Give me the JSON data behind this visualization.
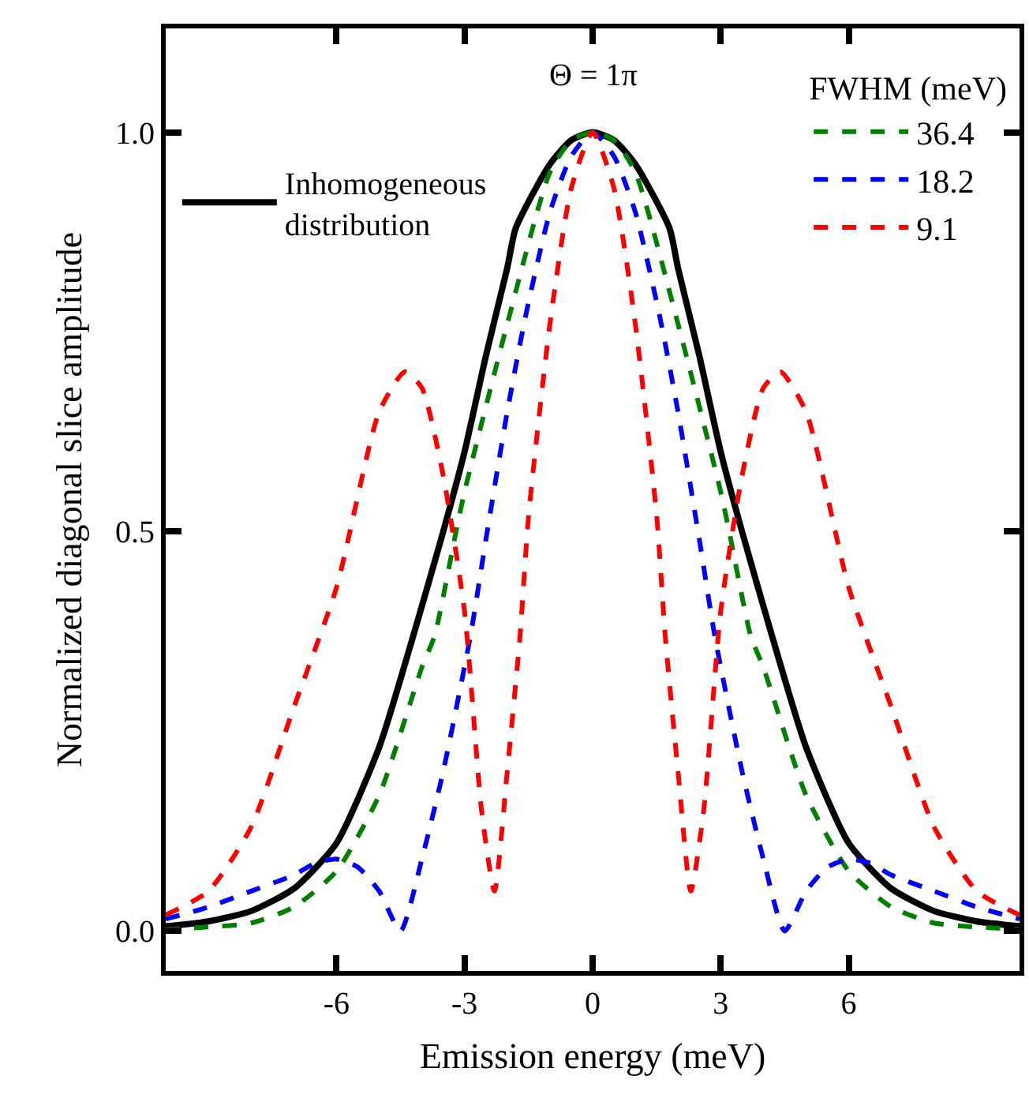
{
  "chart_data": {
    "type": "line",
    "xlabel": "Emission energy (meV)",
    "ylabel": "Normalized diagonal slice amplitude",
    "legend_title": "FWHM (meV)",
    "legend": "top right",
    "marker": "none",
    "xlim": [
      -10,
      10
    ],
    "xticks": [
      -6,
      -3,
      0,
      3,
      6
    ],
    "ylim": [
      -0.05,
      1.13
    ],
    "yticks": [
      {
        "value": 0,
        "label": "0.0"
      },
      {
        "value": 0.5,
        "label": "0.5"
      },
      {
        "value": 1,
        "label": "1.0"
      }
    ],
    "annotations": [
      "Θ = 1π"
    ],
    "series": [
      {
        "name": "Inhomogeneous distribution",
        "color": "#000000",
        "line_style": "solid",
        "x": [
          -10,
          -9,
          -8,
          -7,
          -6,
          -5,
          -4.2,
          -3.5,
          -3,
          -2.5,
          -2,
          -1.8,
          -1,
          -0.5,
          0,
          0.5,
          1,
          1.8,
          2,
          2.5,
          3,
          3.5,
          4.2,
          5,
          6,
          7,
          8,
          9,
          10
        ],
        "values": [
          0.006,
          0.012,
          0.025,
          0.053,
          0.11,
          0.23,
          0.37,
          0.5,
          0.6,
          0.72,
          0.83,
          0.88,
          0.96,
          0.99,
          1.0,
          0.99,
          0.96,
          0.88,
          0.83,
          0.72,
          0.6,
          0.5,
          0.37,
          0.23,
          0.11,
          0.053,
          0.025,
          0.012,
          0.006
        ]
      },
      {
        "name": "36.4",
        "color": "#008000",
        "line_style": "dashed",
        "x": [
          -10,
          -9,
          -8,
          -7,
          -6,
          -5,
          -4,
          -3.7,
          -3.2,
          -3,
          -2,
          -1,
          -0.5,
          0,
          0.5,
          1,
          2,
          3,
          3.2,
          3.7,
          4,
          5,
          6,
          7,
          8,
          9,
          10
        ],
        "values": [
          0.002,
          0.005,
          0.01,
          0.03,
          0.075,
          0.17,
          0.33,
          0.37,
          0.5,
          0.55,
          0.76,
          0.95,
          0.99,
          1.0,
          0.99,
          0.95,
          0.76,
          0.55,
          0.5,
          0.37,
          0.33,
          0.17,
          0.075,
          0.03,
          0.01,
          0.005,
          0.002
        ]
      },
      {
        "name": "18.2",
        "color": "#0000ff",
        "line_style": "dashed",
        "x": [
          -10,
          -9,
          -8,
          -7,
          -6.5,
          -6,
          -5.5,
          -5,
          -4.5,
          -4,
          -3.5,
          -2.86,
          -2.5,
          -2,
          -1.57,
          -1,
          -0.5,
          0,
          0.5,
          1,
          1.57,
          2,
          2.5,
          2.86,
          3.5,
          4,
          4.5,
          5,
          5.5,
          6,
          6.5,
          7,
          8,
          9,
          10
        ],
        "values": [
          0.015,
          0.03,
          0.05,
          0.07,
          0.085,
          0.09,
          0.08,
          0.05,
          0.0,
          0.09,
          0.2,
          0.37,
          0.49,
          0.65,
          0.77,
          0.9,
          0.97,
          1.0,
          0.97,
          0.9,
          0.77,
          0.65,
          0.49,
          0.37,
          0.2,
          0.09,
          0.0,
          0.05,
          0.08,
          0.09,
          0.085,
          0.07,
          0.05,
          0.03,
          0.015
        ]
      },
      {
        "name": "9.1",
        "color": "#ff0000",
        "line_style": "dashed",
        "x": [
          -10,
          -9,
          -8,
          -7,
          -6,
          -5,
          -4.4,
          -4,
          -3.5,
          -3,
          -2.6,
          -2.3,
          -2,
          -1.7,
          -1.5,
          -1,
          -0.5,
          0,
          0.5,
          1,
          1.5,
          1.7,
          2,
          2.3,
          2.6,
          3,
          3.5,
          4,
          4.4,
          5,
          6,
          7,
          8,
          9,
          10
        ],
        "values": [
          0.02,
          0.05,
          0.13,
          0.28,
          0.43,
          0.65,
          0.7,
          0.68,
          0.57,
          0.4,
          0.15,
          0.05,
          0.2,
          0.37,
          0.52,
          0.76,
          0.93,
          1.0,
          0.93,
          0.76,
          0.52,
          0.37,
          0.2,
          0.05,
          0.15,
          0.4,
          0.57,
          0.68,
          0.7,
          0.65,
          0.43,
          0.28,
          0.13,
          0.05,
          0.02
        ]
      }
    ]
  }
}
